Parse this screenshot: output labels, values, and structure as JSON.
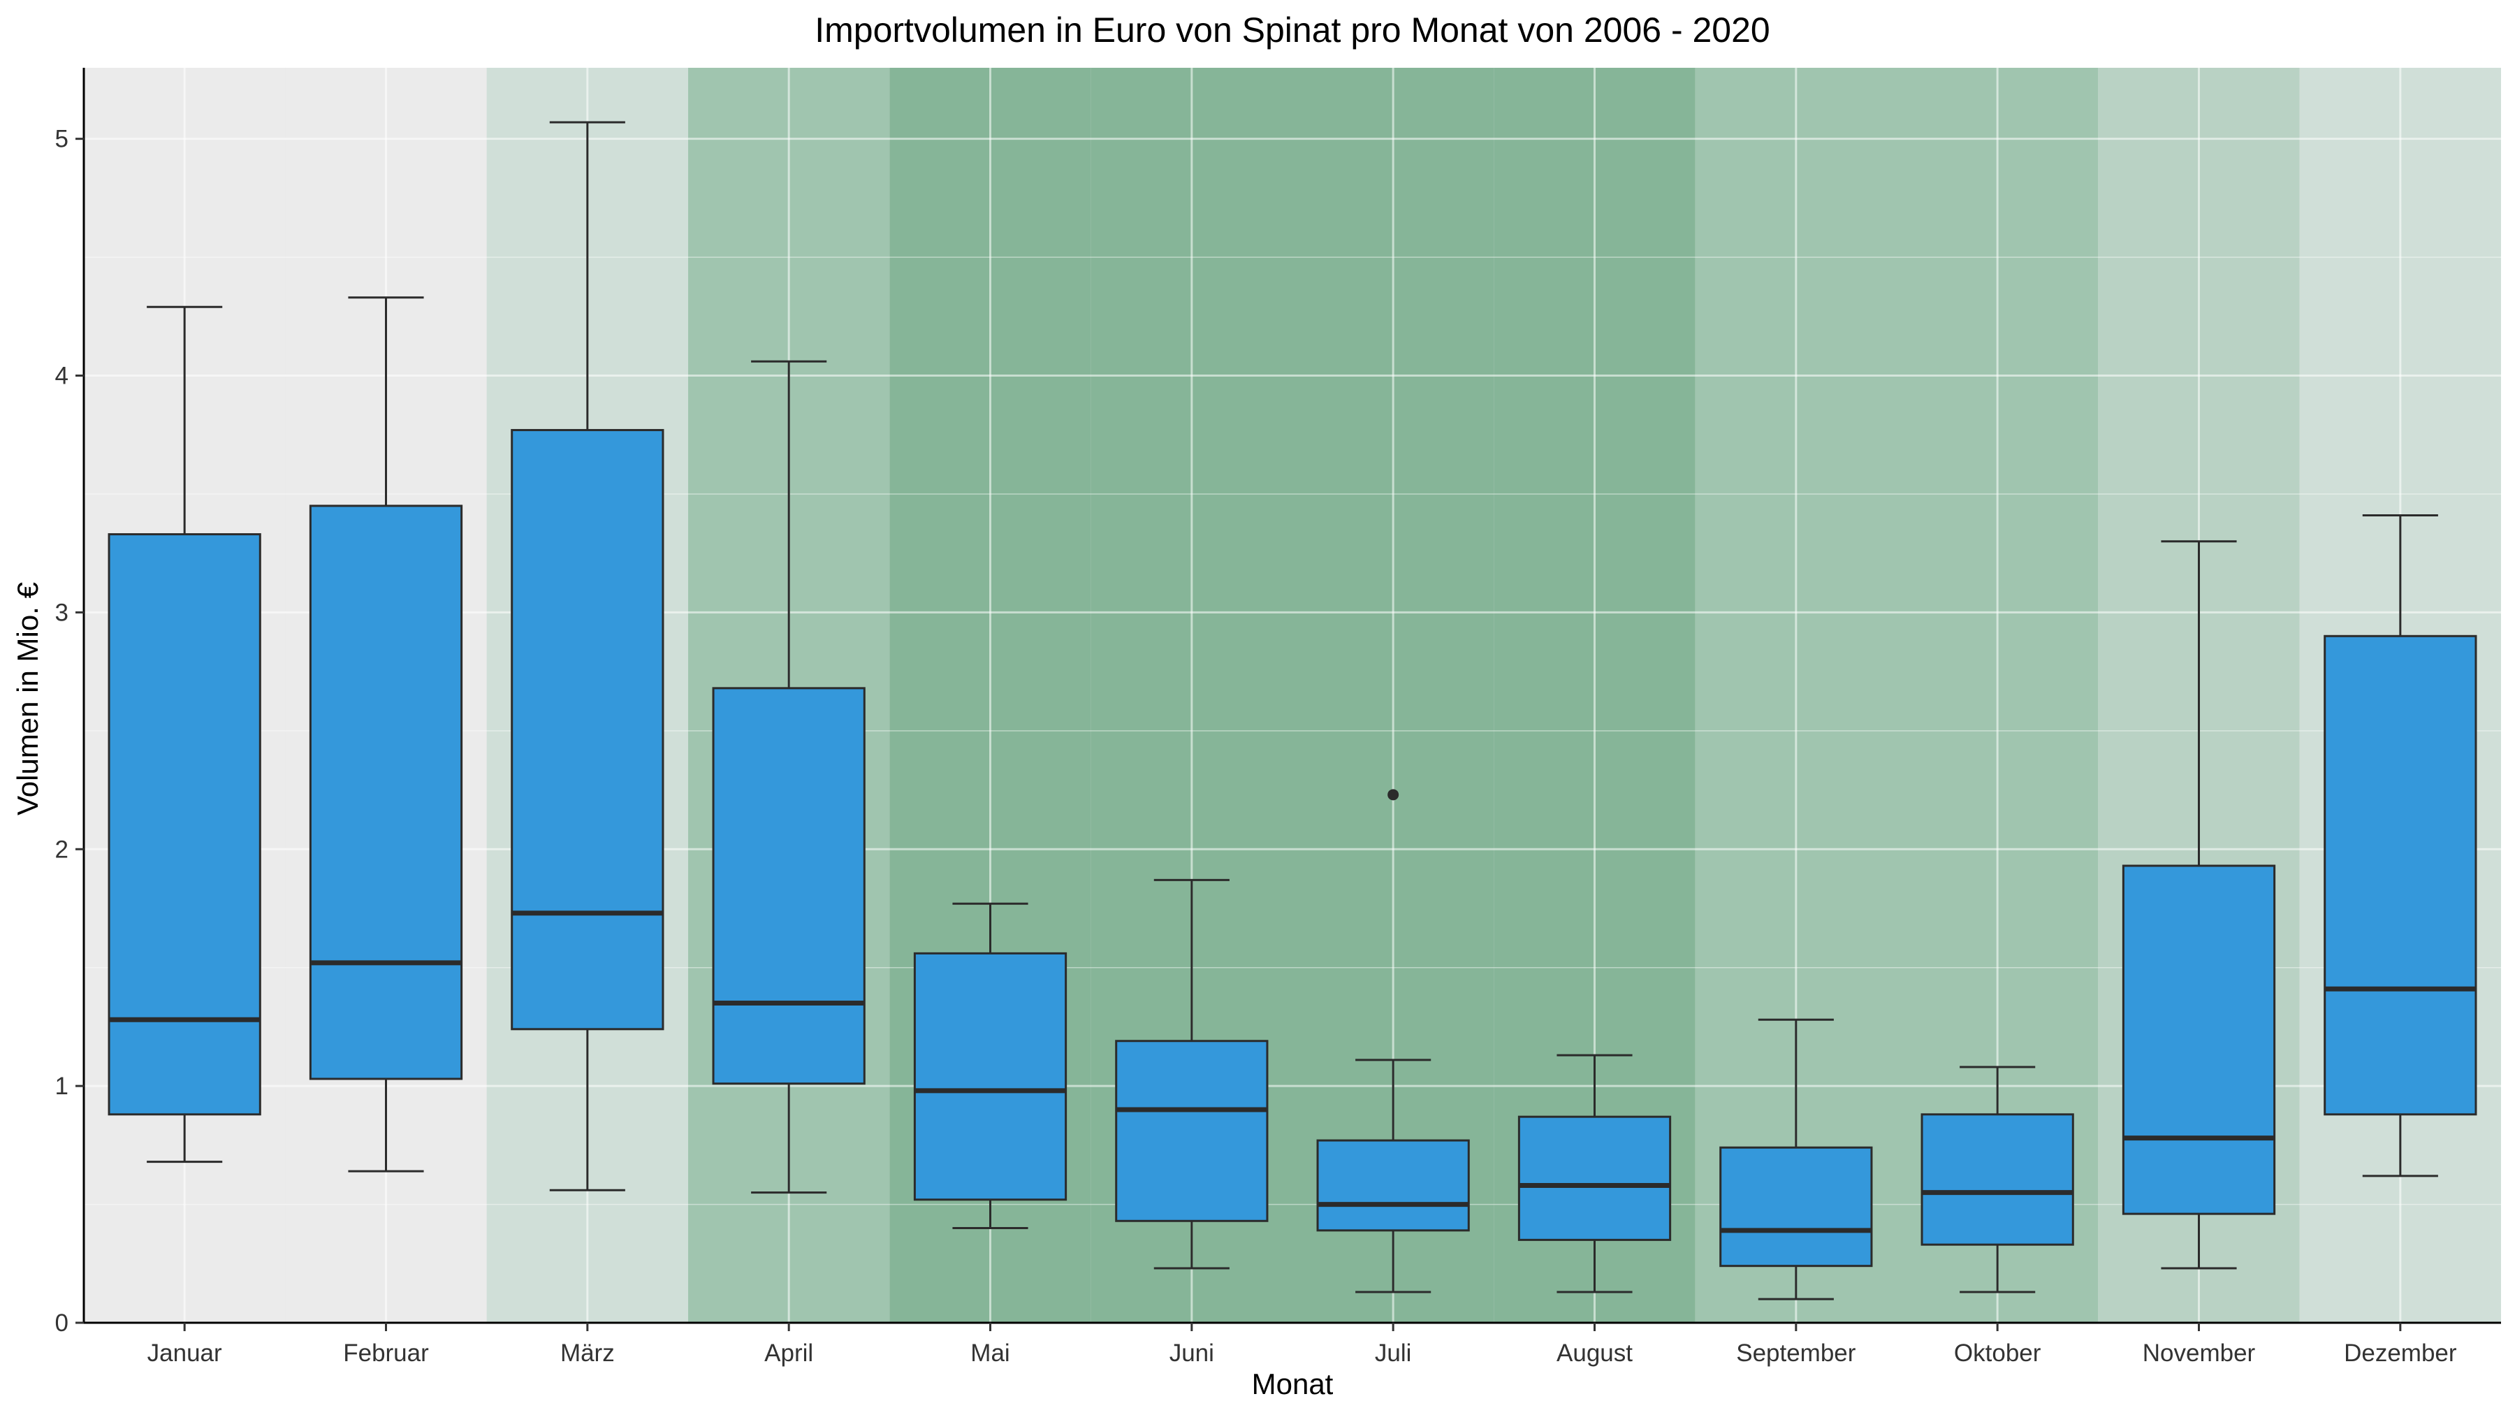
{
  "chart_data": {
    "type": "boxplot",
    "title": "Importvolumen in Euro von Spinat pro Monat von 2006 - 2020",
    "xlabel": "Monat",
    "ylabel": "Volumen in Mio. €",
    "ylim": [
      0,
      5.3
    ],
    "yticks": [
      0,
      1,
      2,
      3,
      4,
      5
    ],
    "grid": true,
    "categories": [
      "Januar",
      "Februar",
      "März",
      "April",
      "Mai",
      "Juni",
      "Juli",
      "August",
      "September",
      "Oktober",
      "November",
      "Dezember"
    ],
    "boxes": [
      {
        "whisker_low": 0.68,
        "q1": 0.88,
        "median": 1.28,
        "q3": 3.33,
        "whisker_high": 4.29,
        "outliers": []
      },
      {
        "whisker_low": 0.64,
        "q1": 1.03,
        "median": 1.52,
        "q3": 3.45,
        "whisker_high": 4.33,
        "outliers": []
      },
      {
        "whisker_low": 0.56,
        "q1": 1.24,
        "median": 1.73,
        "q3": 3.77,
        "whisker_high": 5.07,
        "outliers": []
      },
      {
        "whisker_low": 0.55,
        "q1": 1.01,
        "median": 1.35,
        "q3": 2.68,
        "whisker_high": 4.06,
        "outliers": []
      },
      {
        "whisker_low": 0.4,
        "q1": 0.52,
        "median": 0.98,
        "q3": 1.56,
        "whisker_high": 1.77,
        "outliers": []
      },
      {
        "whisker_low": 0.23,
        "q1": 0.43,
        "median": 0.9,
        "q3": 1.19,
        "whisker_high": 1.87,
        "outliers": []
      },
      {
        "whisker_low": 0.13,
        "q1": 0.39,
        "median": 0.5,
        "q3": 0.77,
        "whisker_high": 1.11,
        "outliers": [
          2.23
        ]
      },
      {
        "whisker_low": 0.13,
        "q1": 0.35,
        "median": 0.58,
        "q3": 0.87,
        "whisker_high": 1.13,
        "outliers": []
      },
      {
        "whisker_low": 0.1,
        "q1": 0.24,
        "median": 0.39,
        "q3": 0.74,
        "whisker_high": 1.28,
        "outliers": []
      },
      {
        "whisker_low": 0.13,
        "q1": 0.33,
        "median": 0.55,
        "q3": 0.88,
        "whisker_high": 1.08,
        "outliers": []
      },
      {
        "whisker_low": 0.23,
        "q1": 0.46,
        "median": 0.78,
        "q3": 1.93,
        "whisker_high": 3.3,
        "outliers": []
      },
      {
        "whisker_low": 0.62,
        "q1": 0.88,
        "median": 1.41,
        "q3": 2.9,
        "whisker_high": 3.41,
        "outliers": []
      }
    ],
    "colors": {
      "box_fill": "#3498DB",
      "box_stroke": "#2b2b2b",
      "panel_background": "#EBEBEB",
      "grid": "#FFFFFF",
      "month_shading": [
        "#EBEBEB",
        "#EBEBEB",
        "#D0DFD8",
        "#A0C5AF",
        "#86B598",
        "#86B598",
        "#86B598",
        "#86B598",
        "#A0C5AF",
        "#A0C5AF",
        "#B9D2C4",
        "#D0DFD8"
      ]
    }
  }
}
